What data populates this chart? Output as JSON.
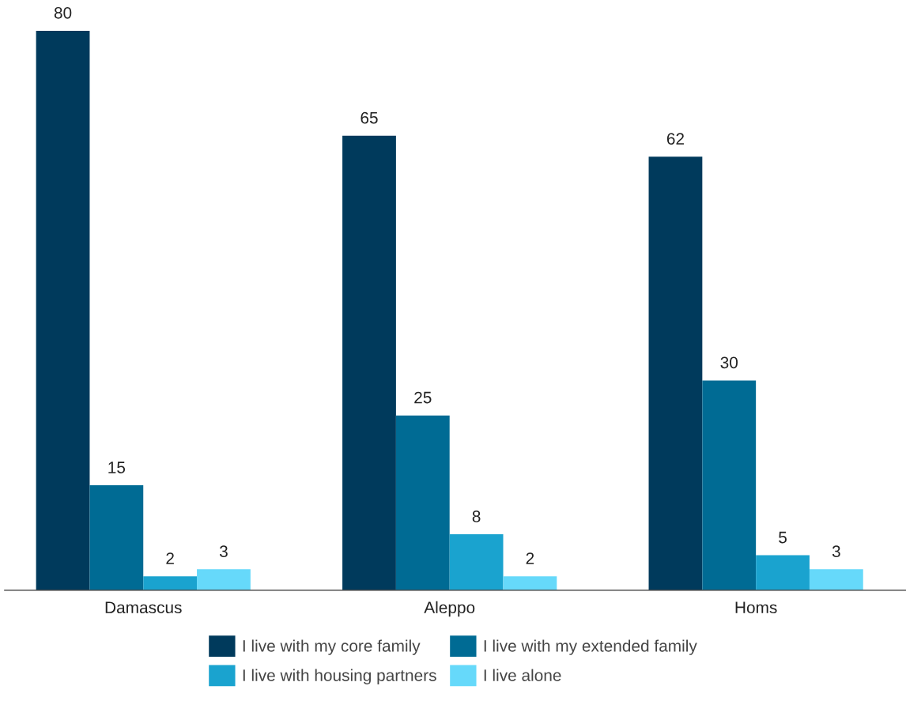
{
  "chart_data": {
    "type": "bar",
    "categories": [
      "Damascus",
      "Aleppo",
      "Homs"
    ],
    "series": [
      {
        "name": "I live with my core family",
        "color": "#003a5c",
        "values": [
          80,
          65,
          62
        ]
      },
      {
        "name": "I live with my extended family",
        "color": "#006b94",
        "values": [
          15,
          25,
          30
        ]
      },
      {
        "name": "I live with housing partners",
        "color": "#1aa3cf",
        "values": [
          2,
          8,
          5
        ]
      },
      {
        "name": "I live alone",
        "color": "#66d9fa",
        "values": [
          3,
          2,
          3
        ]
      }
    ],
    "data_labels": true,
    "grid": false,
    "legend": "bottom"
  }
}
